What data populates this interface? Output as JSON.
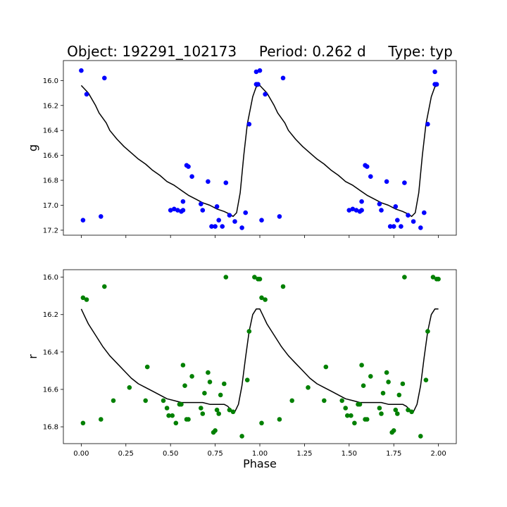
{
  "figure": {
    "title": "Object: 192291_102173     Period: 0.262 d     Type: typ"
  },
  "chart_data": [
    {
      "type": "scatter",
      "panel": "top",
      "xlabel": "",
      "ylabel": "g",
      "xlim": [
        -0.1,
        2.1
      ],
      "ylim": [
        17.24,
        15.84
      ],
      "y_inverted": true,
      "y_ticks": [
        16.0,
        16.2,
        16.4,
        16.6,
        16.8,
        17.0,
        17.2
      ],
      "x_ticks": [
        0.0,
        0.25,
        0.5,
        0.75,
        1.0,
        1.25,
        1.5,
        1.75,
        2.0
      ],
      "show_x_tick_labels": false,
      "points_color": "#0000ff",
      "points": [
        [
          0.0,
          15.92
        ],
        [
          0.01,
          17.12
        ],
        [
          0.03,
          16.11
        ],
        [
          0.11,
          17.09
        ],
        [
          0.13,
          15.98
        ],
        [
          0.5,
          17.04
        ],
        [
          0.52,
          17.03
        ],
        [
          0.54,
          17.04
        ],
        [
          0.56,
          17.05
        ],
        [
          0.57,
          16.97
        ],
        [
          0.57,
          17.04
        ],
        [
          0.59,
          16.68
        ],
        [
          0.6,
          16.69
        ],
        [
          0.62,
          16.77
        ],
        [
          0.67,
          16.99
        ],
        [
          0.68,
          17.04
        ],
        [
          0.71,
          16.81
        ],
        [
          0.73,
          17.17
        ],
        [
          0.75,
          17.17
        ],
        [
          0.76,
          17.01
        ],
        [
          0.77,
          17.12
        ],
        [
          0.79,
          17.17
        ],
        [
          0.81,
          16.82
        ],
        [
          0.83,
          17.08
        ],
        [
          0.86,
          17.13
        ],
        [
          0.9,
          17.18
        ],
        [
          0.92,
          17.06
        ],
        [
          0.94,
          16.35
        ],
        [
          0.98,
          15.93
        ],
        [
          0.98,
          16.03
        ],
        [
          0.99,
          16.03
        ],
        [
          1.0,
          15.92
        ],
        [
          1.01,
          17.12
        ],
        [
          1.03,
          16.11
        ],
        [
          1.11,
          17.09
        ],
        [
          1.13,
          15.98
        ],
        [
          1.5,
          17.04
        ],
        [
          1.52,
          17.03
        ],
        [
          1.54,
          17.04
        ],
        [
          1.56,
          17.05
        ],
        [
          1.57,
          16.97
        ],
        [
          1.57,
          17.04
        ],
        [
          1.59,
          16.68
        ],
        [
          1.6,
          16.69
        ],
        [
          1.62,
          16.77
        ],
        [
          1.67,
          16.99
        ],
        [
          1.68,
          17.04
        ],
        [
          1.71,
          16.81
        ],
        [
          1.73,
          17.17
        ],
        [
          1.75,
          17.17
        ],
        [
          1.76,
          17.01
        ],
        [
          1.77,
          17.12
        ],
        [
          1.79,
          17.17
        ],
        [
          1.81,
          16.82
        ],
        [
          1.83,
          17.08
        ],
        [
          1.86,
          17.13
        ],
        [
          1.9,
          17.18
        ],
        [
          1.92,
          17.06
        ],
        [
          1.94,
          16.35
        ],
        [
          1.98,
          15.93
        ],
        [
          1.98,
          16.03
        ],
        [
          1.99,
          16.03
        ]
      ],
      "model_color": "#000000",
      "model": [
        [
          0.0,
          16.04
        ],
        [
          0.04,
          16.1
        ],
        [
          0.08,
          16.2
        ],
        [
          0.1,
          16.26
        ],
        [
          0.14,
          16.34
        ],
        [
          0.16,
          16.4
        ],
        [
          0.2,
          16.47
        ],
        [
          0.24,
          16.53
        ],
        [
          0.28,
          16.58
        ],
        [
          0.32,
          16.63
        ],
        [
          0.36,
          16.67
        ],
        [
          0.4,
          16.72
        ],
        [
          0.44,
          16.76
        ],
        [
          0.48,
          16.81
        ],
        [
          0.52,
          16.84
        ],
        [
          0.56,
          16.88
        ],
        [
          0.6,
          16.92
        ],
        [
          0.64,
          16.95
        ],
        [
          0.68,
          16.98
        ],
        [
          0.72,
          17.0
        ],
        [
          0.76,
          17.03
        ],
        [
          0.8,
          17.05
        ],
        [
          0.83,
          17.07
        ],
        [
          0.85,
          17.09
        ],
        [
          0.87,
          17.06
        ],
        [
          0.89,
          16.9
        ],
        [
          0.91,
          16.6
        ],
        [
          0.93,
          16.35
        ],
        [
          0.96,
          16.13
        ],
        [
          0.98,
          16.05
        ],
        [
          1.0,
          16.04
        ],
        [
          1.04,
          16.1
        ],
        [
          1.08,
          16.2
        ],
        [
          1.1,
          16.26
        ],
        [
          1.14,
          16.34
        ],
        [
          1.16,
          16.4
        ],
        [
          1.2,
          16.47
        ],
        [
          1.24,
          16.53
        ],
        [
          1.28,
          16.58
        ],
        [
          1.32,
          16.63
        ],
        [
          1.36,
          16.67
        ],
        [
          1.4,
          16.72
        ],
        [
          1.44,
          16.76
        ],
        [
          1.48,
          16.81
        ],
        [
          1.52,
          16.84
        ],
        [
          1.56,
          16.88
        ],
        [
          1.6,
          16.92
        ],
        [
          1.64,
          16.95
        ],
        [
          1.68,
          16.98
        ],
        [
          1.72,
          17.0
        ],
        [
          1.76,
          17.03
        ],
        [
          1.8,
          17.05
        ],
        [
          1.83,
          17.07
        ],
        [
          1.85,
          17.09
        ],
        [
          1.87,
          17.06
        ],
        [
          1.89,
          16.9
        ],
        [
          1.91,
          16.6
        ],
        [
          1.93,
          16.35
        ],
        [
          1.96,
          16.13
        ],
        [
          1.98,
          16.05
        ],
        [
          2.0,
          16.04
        ]
      ]
    },
    {
      "type": "scatter",
      "panel": "bottom",
      "xlabel": "Phase",
      "ylabel": "r",
      "xlim": [
        -0.1,
        2.1
      ],
      "ylim": [
        16.89,
        15.96
      ],
      "y_inverted": true,
      "y_ticks": [
        16.0,
        16.2,
        16.4,
        16.6,
        16.8
      ],
      "x_ticks": [
        0.0,
        0.25,
        0.5,
        0.75,
        1.0,
        1.25,
        1.5,
        1.75,
        2.0
      ],
      "x_tick_labels": [
        "0.00",
        "0.25",
        "0.50",
        "0.75",
        "1.00",
        "1.25",
        "1.50",
        "1.75",
        "2.00"
      ],
      "show_x_tick_labels": true,
      "points_color": "#008000",
      "points": [
        [
          0.01,
          16.11
        ],
        [
          0.01,
          16.78
        ],
        [
          0.03,
          16.12
        ],
        [
          0.11,
          16.76
        ],
        [
          0.13,
          16.05
        ],
        [
          0.18,
          16.66
        ],
        [
          0.27,
          16.59
        ],
        [
          0.36,
          16.66
        ],
        [
          0.37,
          16.48
        ],
        [
          0.46,
          16.66
        ],
        [
          0.48,
          16.7
        ],
        [
          0.49,
          16.74
        ],
        [
          0.51,
          16.74
        ],
        [
          0.53,
          16.78
        ],
        [
          0.55,
          16.68
        ],
        [
          0.56,
          16.68
        ],
        [
          0.57,
          16.47
        ],
        [
          0.58,
          16.58
        ],
        [
          0.59,
          16.76
        ],
        [
          0.6,
          16.76
        ],
        [
          0.62,
          16.53
        ],
        [
          0.67,
          16.7
        ],
        [
          0.68,
          16.73
        ],
        [
          0.69,
          16.62
        ],
        [
          0.71,
          16.51
        ],
        [
          0.72,
          16.56
        ],
        [
          0.74,
          16.83
        ],
        [
          0.75,
          16.82
        ],
        [
          0.76,
          16.71
        ],
        [
          0.77,
          16.73
        ],
        [
          0.78,
          16.63
        ],
        [
          0.8,
          16.57
        ],
        [
          0.81,
          16.0
        ],
        [
          0.83,
          16.71
        ],
        [
          0.85,
          16.72
        ],
        [
          0.9,
          16.85
        ],
        [
          0.93,
          16.55
        ],
        [
          0.94,
          16.29
        ],
        [
          0.97,
          16.0
        ],
        [
          0.99,
          16.01
        ],
        [
          1.0,
          16.01
        ],
        [
          1.01,
          16.11
        ],
        [
          1.01,
          16.78
        ],
        [
          1.03,
          16.12
        ],
        [
          1.11,
          16.76
        ],
        [
          1.13,
          16.05
        ],
        [
          1.18,
          16.66
        ],
        [
          1.27,
          16.59
        ],
        [
          1.36,
          16.66
        ],
        [
          1.37,
          16.48
        ],
        [
          1.46,
          16.66
        ],
        [
          1.48,
          16.7
        ],
        [
          1.49,
          16.74
        ],
        [
          1.51,
          16.74
        ],
        [
          1.53,
          16.78
        ],
        [
          1.55,
          16.68
        ],
        [
          1.56,
          16.68
        ],
        [
          1.57,
          16.47
        ],
        [
          1.58,
          16.58
        ],
        [
          1.59,
          16.76
        ],
        [
          1.6,
          16.76
        ],
        [
          1.62,
          16.53
        ],
        [
          1.67,
          16.7
        ],
        [
          1.68,
          16.73
        ],
        [
          1.69,
          16.62
        ],
        [
          1.71,
          16.51
        ],
        [
          1.72,
          16.56
        ],
        [
          1.74,
          16.83
        ],
        [
          1.75,
          16.82
        ],
        [
          1.76,
          16.71
        ],
        [
          1.77,
          16.73
        ],
        [
          1.78,
          16.63
        ],
        [
          1.8,
          16.57
        ],
        [
          1.81,
          16.0
        ],
        [
          1.83,
          16.71
        ],
        [
          1.85,
          16.72
        ],
        [
          1.9,
          16.85
        ],
        [
          1.93,
          16.55
        ],
        [
          1.94,
          16.29
        ],
        [
          1.97,
          16.0
        ],
        [
          1.99,
          16.01
        ],
        [
          2.0,
          16.01
        ]
      ],
      "model_color": "#000000",
      "model": [
        [
          0.0,
          16.17
        ],
        [
          0.02,
          16.21
        ],
        [
          0.04,
          16.25
        ],
        [
          0.08,
          16.31
        ],
        [
          0.12,
          16.37
        ],
        [
          0.16,
          16.42
        ],
        [
          0.2,
          16.46
        ],
        [
          0.24,
          16.5
        ],
        [
          0.28,
          16.54
        ],
        [
          0.32,
          16.57
        ],
        [
          0.36,
          16.59
        ],
        [
          0.4,
          16.61
        ],
        [
          0.44,
          16.63
        ],
        [
          0.48,
          16.65
        ],
        [
          0.52,
          16.66
        ],
        [
          0.56,
          16.67
        ],
        [
          0.6,
          16.67
        ],
        [
          0.64,
          16.67
        ],
        [
          0.68,
          16.67
        ],
        [
          0.72,
          16.68
        ],
        [
          0.76,
          16.68
        ],
        [
          0.8,
          16.68
        ],
        [
          0.82,
          16.69
        ],
        [
          0.84,
          16.71
        ],
        [
          0.86,
          16.72
        ],
        [
          0.88,
          16.68
        ],
        [
          0.9,
          16.58
        ],
        [
          0.92,
          16.43
        ],
        [
          0.94,
          16.29
        ],
        [
          0.96,
          16.2
        ],
        [
          0.98,
          16.17
        ],
        [
          1.0,
          16.17
        ],
        [
          1.02,
          16.21
        ],
        [
          1.04,
          16.25
        ],
        [
          1.08,
          16.31
        ],
        [
          1.12,
          16.37
        ],
        [
          1.16,
          16.42
        ],
        [
          1.2,
          16.46
        ],
        [
          1.24,
          16.5
        ],
        [
          1.28,
          16.54
        ],
        [
          1.32,
          16.57
        ],
        [
          1.36,
          16.59
        ],
        [
          1.4,
          16.61
        ],
        [
          1.44,
          16.63
        ],
        [
          1.48,
          16.65
        ],
        [
          1.52,
          16.66
        ],
        [
          1.56,
          16.67
        ],
        [
          1.6,
          16.67
        ],
        [
          1.64,
          16.67
        ],
        [
          1.68,
          16.67
        ],
        [
          1.72,
          16.68
        ],
        [
          1.76,
          16.68
        ],
        [
          1.8,
          16.68
        ],
        [
          1.82,
          16.69
        ],
        [
          1.84,
          16.71
        ],
        [
          1.86,
          16.72
        ],
        [
          1.88,
          16.68
        ],
        [
          1.9,
          16.58
        ],
        [
          1.92,
          16.43
        ],
        [
          1.94,
          16.29
        ],
        [
          1.96,
          16.2
        ],
        [
          1.98,
          16.17
        ],
        [
          2.0,
          16.17
        ]
      ]
    }
  ]
}
